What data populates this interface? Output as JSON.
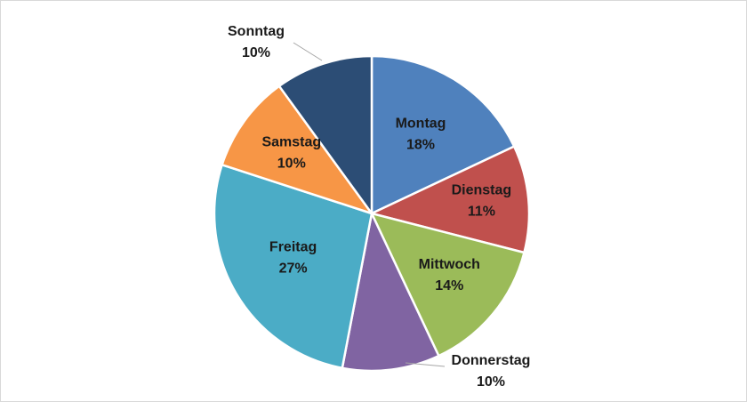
{
  "chart_data": {
    "type": "pie",
    "title": "",
    "start_angle_deg": 0,
    "direction": "clockwise",
    "legend": "none",
    "slices": [
      {
        "label": "Montag",
        "pct_label": "18%",
        "value": 18,
        "color": "#4f81bd"
      },
      {
        "label": "Dienstag",
        "pct_label": "11%",
        "value": 11,
        "color": "#c0504d"
      },
      {
        "label": "Mittwoch",
        "pct_label": "14%",
        "value": 14,
        "color": "#9bbb59"
      },
      {
        "label": "Donnerstag",
        "pct_label": "10%",
        "value": 10,
        "color": "#8064a2"
      },
      {
        "label": "Freitag",
        "pct_label": "27%",
        "value": 27,
        "color": "#4bacc6"
      },
      {
        "label": "Samstag",
        "pct_label": "10%",
        "value": 10,
        "color": "#f79646"
      },
      {
        "label": "Sonntag",
        "pct_label": "10%",
        "value": 10,
        "color": "#2c4d75"
      }
    ]
  }
}
